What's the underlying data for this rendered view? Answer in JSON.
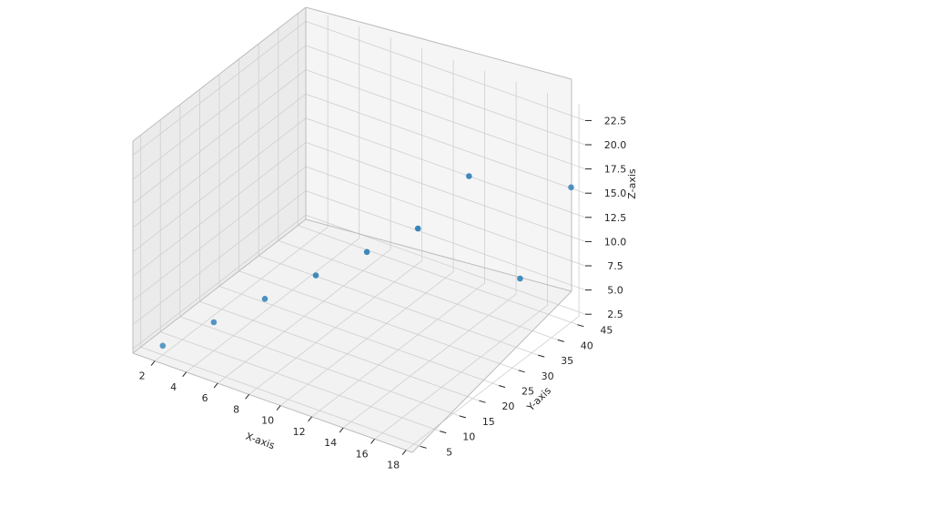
{
  "chart_data": {
    "type": "scatter",
    "projection": "3d",
    "title": "",
    "xlabel": "X-axis",
    "ylabel": "Y-axis",
    "zlabel": "Z-axis",
    "xlim": [
      0.6,
      18.4
    ],
    "ylim": [
      3.0,
      47.0
    ],
    "zlim": [
      2.05,
      23.95
    ],
    "xticks": [
      "2",
      "4",
      "6",
      "8",
      "10",
      "12",
      "14",
      "16",
      "18"
    ],
    "yticks": [
      "5",
      "10",
      "15",
      "20",
      "25",
      "30",
      "35",
      "40",
      "45"
    ],
    "zticks": [
      "2.5",
      "5.0",
      "7.5",
      "10.0",
      "12.5",
      "15.0",
      "17.5",
      "20.0",
      "22.5"
    ],
    "grid": true,
    "color": "#1f77b4",
    "points": [
      {
        "x": 2,
        "y": 5,
        "z": 3
      },
      {
        "x": 4,
        "y": 10,
        "z": 5
      },
      {
        "x": 6,
        "y": 15,
        "z": 7
      },
      {
        "x": 8,
        "y": 20,
        "z": 9
      },
      {
        "x": 10,
        "y": 25,
        "z": 11
      },
      {
        "x": 12,
        "y": 30,
        "z": 13
      },
      {
        "x": 14,
        "y": 35,
        "z": 18
      },
      {
        "x": 16,
        "y": 40,
        "z": 7
      },
      {
        "x": 18,
        "y": 45,
        "z": 16
      }
    ]
  }
}
